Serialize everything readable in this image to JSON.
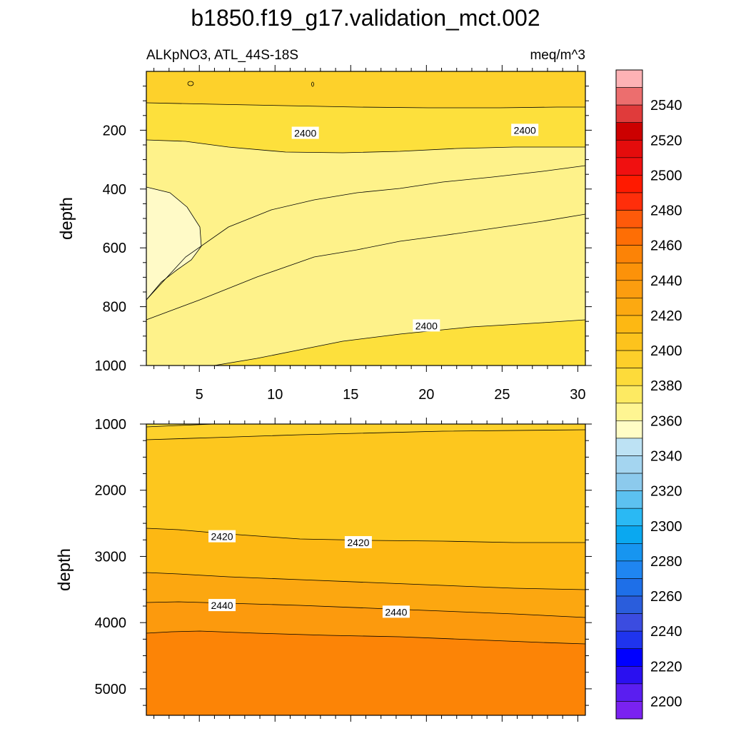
{
  "chart_data": [
    {
      "type": "contour",
      "panel": "upper",
      "title": "b1850.f19_g17.validation_mct.002",
      "left_subtitle": "ALKpNO3, ATL_44S-18S",
      "right_subtitle": "meq/m^3",
      "ylabel": "depth",
      "xlim": [
        1.5,
        30.5
      ],
      "ylim": [
        1000,
        0
      ],
      "x_ticks": [
        5,
        10,
        15,
        20,
        25,
        30
      ],
      "x_tick_labels": [
        "5",
        "10",
        "15",
        "20",
        "25",
        "30"
      ],
      "y_ticks": [
        200,
        400,
        600,
        800,
        1000
      ],
      "y_tick_labels": [
        "200",
        "400",
        "600",
        "800",
        "1000"
      ],
      "contour_interval": 10,
      "contour_labels": [
        {
          "text": "2400",
          "x": 12.0,
          "y": 210
        },
        {
          "text": "2400",
          "x": 26.5,
          "y": 200
        },
        {
          "text": "2400",
          "x": 20.0,
          "y": 865
        }
      ],
      "regions": [
        {
          "range": "2400-2410",
          "color": "#fdd12b"
        },
        {
          "range": "2390-2400",
          "color": "#fde03c"
        },
        {
          "range": "2380-2390",
          "color": "#fef28a"
        },
        {
          "range": "2370-2380",
          "color": "#fffac7"
        }
      ]
    },
    {
      "type": "contour",
      "panel": "lower",
      "ylabel": "depth",
      "xlim": [
        1.5,
        30.5
      ],
      "ylim": [
        5400,
        1000
      ],
      "y_ticks": [
        1000,
        2000,
        3000,
        4000,
        5000
      ],
      "y_tick_labels": [
        "1000",
        "2000",
        "3000",
        "4000",
        "5000"
      ],
      "contour_labels": [
        {
          "text": "2420",
          "x": 6.5,
          "y": 2700
        },
        {
          "text": "2420",
          "x": 15.5,
          "y": 2790
        },
        {
          "text": "2440",
          "x": 6.5,
          "y": 3740
        },
        {
          "text": "2440",
          "x": 18.0,
          "y": 3840
        }
      ],
      "regions": [
        {
          "range": "2390-2400",
          "color": "#fde03c"
        },
        {
          "range": "2400-2410",
          "color": "#fdd12b"
        },
        {
          "range": "2410-2420",
          "color": "#fdc71e"
        },
        {
          "range": "2420-2430",
          "color": "#fdb813"
        },
        {
          "range": "2430-2440",
          "color": "#fca710"
        },
        {
          "range": "2440-2450",
          "color": "#fc9a0d"
        },
        {
          "range": "2450-2460",
          "color": "#fc8406"
        }
      ]
    },
    {
      "type": "colorbar",
      "labels": [
        "2540",
        "2520",
        "2500",
        "2480",
        "2460",
        "2440",
        "2420",
        "2400",
        "2380",
        "2360",
        "2340",
        "2320",
        "2300",
        "2280",
        "2260",
        "2240",
        "2220",
        "2200"
      ],
      "colors": [
        "#fdb2b5",
        "#ec6e6e",
        "#e03b3b",
        "#cc0000",
        "#e40c0c",
        "#f01010",
        "#ff1a00",
        "#ff2e0a",
        "#fe5a0a",
        "#fe6e05",
        "#fc8306",
        "#fc9209",
        "#fc9d0f",
        "#fca911",
        "#fdb813",
        "#fdc31d",
        "#fdcf2a",
        "#fddb3a",
        "#fdea62",
        "#fef592",
        "#fffdc6",
        "#bde2f4",
        "#a4d5f0",
        "#8ccaed",
        "#5cc1f0",
        "#2ab9f4",
        "#0aa8f0",
        "#1795f0",
        "#1f85f1",
        "#1e6fe8",
        "#2a5ddc",
        "#3b4ce0",
        "#1f34ee",
        "#0000ff",
        "#2a10f0",
        "#5a1ef0",
        "#7a22f0"
      ]
    }
  ]
}
